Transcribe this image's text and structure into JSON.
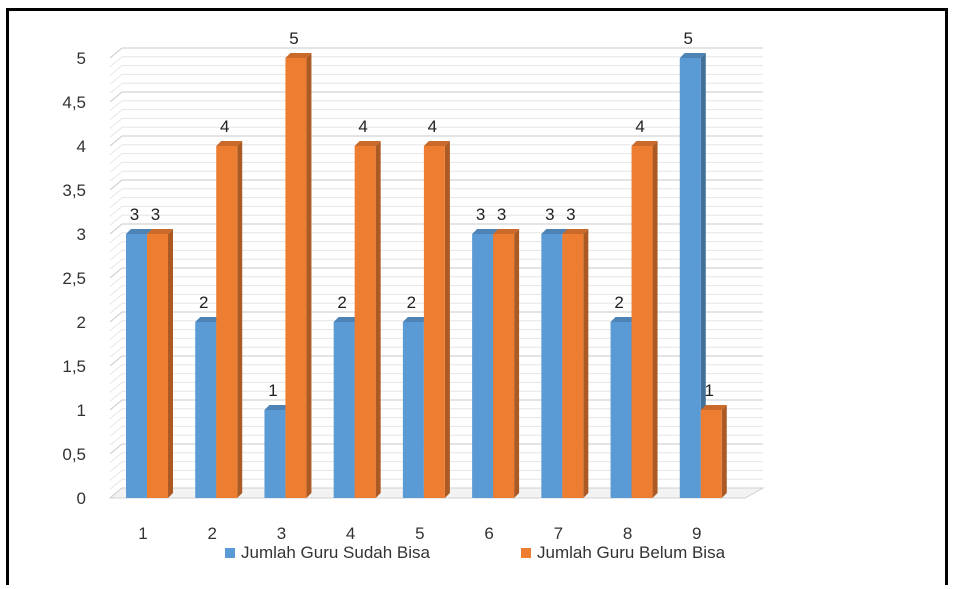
{
  "chart_data": {
    "type": "bar",
    "categories": [
      "1",
      "2",
      "3",
      "4",
      "5",
      "6",
      "7",
      "8",
      "9"
    ],
    "series": [
      {
        "name": "Jumlah Guru Sudah Bisa",
        "values": [
          3,
          2,
          1,
          2,
          2,
          3,
          3,
          2,
          5
        ],
        "color": "#5b9bd5"
      },
      {
        "name": "Jumlah Guru Belum Bisa",
        "values": [
          3,
          4,
          5,
          4,
          4,
          3,
          3,
          4,
          1
        ],
        "color": "#ed7d31"
      }
    ],
    "y_ticks": [
      "0",
      "0,5",
      "1",
      "1,5",
      "2",
      "2,5",
      "3",
      "3,5",
      "4",
      "4,5",
      "5"
    ],
    "ylim": [
      0,
      5
    ],
    "grid": true,
    "legend_position": "bottom",
    "data_labels": true
  }
}
